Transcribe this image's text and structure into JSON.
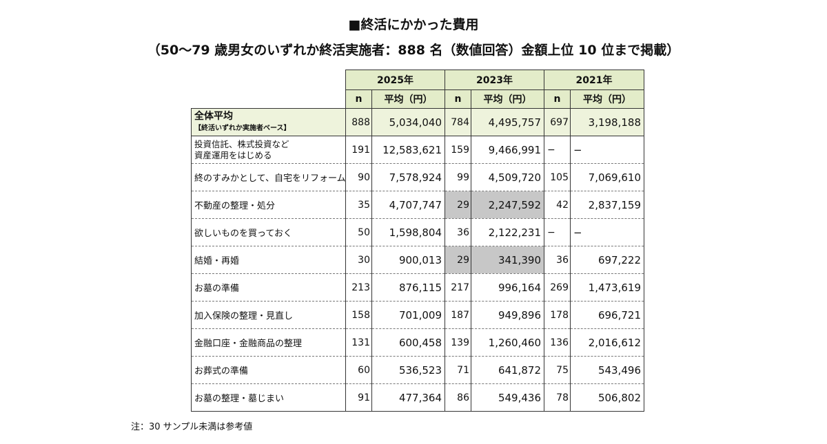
{
  "title": {
    "line1": "■終活にかかった費用",
    "line2": "（50～79 歳男女のいずれか終活実施者：888 名（数値回答）金額上位 10 位まで掲載）"
  },
  "table": {
    "years": [
      "2025年",
      "2023年",
      "2021年"
    ],
    "col_n": "n",
    "col_avg": "平均（円）",
    "total": {
      "label": "全体平均",
      "sublabel": "【終活いずれか実施者ベース】",
      "values": [
        "888",
        "5,034,040",
        "784",
        "4,495,757",
        "697",
        "3,198,188"
      ]
    },
    "rows": [
      {
        "label": "投資信託、株式投資など",
        "label2": "資産運用をはじめる",
        "values": [
          "191",
          "12,583,621",
          "159",
          "9,466,991",
          "−",
          "−"
        ]
      },
      {
        "label": "終のすみかとして、自宅をリフォーム",
        "values": [
          "90",
          "7,578,924",
          "99",
          "4,509,720",
          "105",
          "7,069,610"
        ]
      },
      {
        "label": "不動産の整理・処分",
        "values": [
          "35",
          "4,707,747",
          "29",
          "2,247,592",
          "42",
          "2,837,159"
        ]
      },
      {
        "label": "欲しいものを買っておく",
        "values": [
          "50",
          "1,598,804",
          "36",
          "2,122,231",
          "−",
          "−"
        ]
      },
      {
        "label": "結婚・再婚",
        "values": [
          "30",
          "900,013",
          "29",
          "341,390",
          "36",
          "697,222"
        ]
      },
      {
        "label": "お墓の準備",
        "values": [
          "213",
          "876,115",
          "217",
          "996,164",
          "269",
          "1,473,619"
        ]
      },
      {
        "label": "加入保険の整理・見直し",
        "values": [
          "158",
          "701,009",
          "187",
          "949,896",
          "178",
          "696,721"
        ]
      },
      {
        "label": "金融口座・金融商品の整理",
        "values": [
          "131",
          "600,458",
          "139",
          "1,260,460",
          "136",
          "2,016,612"
        ]
      },
      {
        "label": "お葬式の準備",
        "values": [
          "60",
          "536,523",
          "71",
          "641,872",
          "75",
          "543,496"
        ]
      },
      {
        "label": "お墓の整理・墓じまい",
        "values": [
          "91",
          "477,364",
          "86",
          "549,436",
          "78",
          "506,802"
        ]
      }
    ]
  },
  "note": "注：30 サンプル未満は参考値",
  "colors": {
    "header_bg": "#e3ecc9",
    "total_bg": "#eef3dc",
    "low_sample_bg": "#c7c7c7"
  }
}
